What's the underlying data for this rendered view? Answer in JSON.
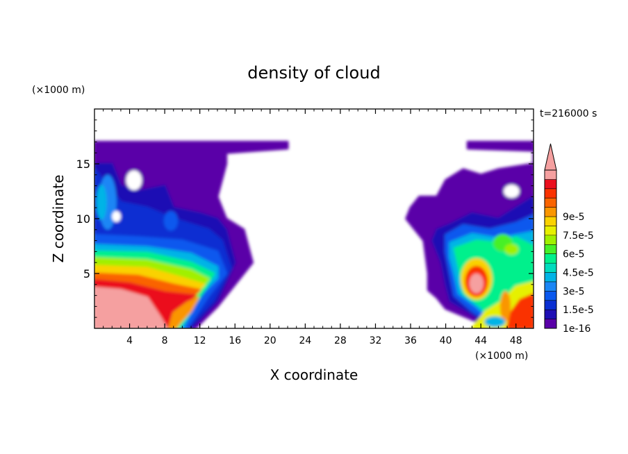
{
  "chart_data": {
    "type": "heatmap",
    "title": "density of cloud",
    "xlabel": "X coordinate",
    "ylabel": "Z coordinate",
    "x_unit": "(×1000 m)",
    "y_unit": "(×1000 m)",
    "time_label": "t=216000 s",
    "xlim": [
      0,
      50
    ],
    "ylim": [
      0,
      20
    ],
    "x_ticks": [
      "4",
      "8",
      "12",
      "16",
      "20",
      "24",
      "28",
      "32",
      "36",
      "40",
      "44",
      "48"
    ],
    "y_ticks": [
      "5",
      "10",
      "15"
    ],
    "colorbar": {
      "labels": [
        "1e-16",
        "1.5e-5",
        "3e-5",
        "4.5e-5",
        "6e-5",
        "7.5e-5",
        "9e-5"
      ],
      "colors": [
        "#5a00a8",
        "#1e0eb4",
        "#0a2fd2",
        "#0a58ee",
        "#1a86f5",
        "#00b4e6",
        "#00dcbe",
        "#00f08c",
        "#46f028",
        "#a0f000",
        "#e6f000",
        "#fad200",
        "#fa9600",
        "#fa6400",
        "#fa3200",
        "#eb0f1e",
        "#f5a0a0"
      ],
      "over_color": "#f5a0a0"
    },
    "features": [
      {
        "region": "left cloud core",
        "x": [
          0,
          16
        ],
        "z": [
          0,
          8
        ],
        "peak": "over 1e-4"
      },
      {
        "region": "left upper cloud",
        "x": [
          0,
          22
        ],
        "z": [
          8,
          17
        ],
        "peak": "1.5e-5 to 4.5e-5"
      },
      {
        "region": "right cloud core",
        "x": [
          40,
          50
        ],
        "z": [
          0,
          9
        ],
        "peak": "over 1e-4"
      },
      {
        "region": "right upper cloud",
        "x": [
          35,
          50
        ],
        "z": [
          9,
          17
        ],
        "peak": "1e-16 to 1.5e-5"
      }
    ]
  }
}
